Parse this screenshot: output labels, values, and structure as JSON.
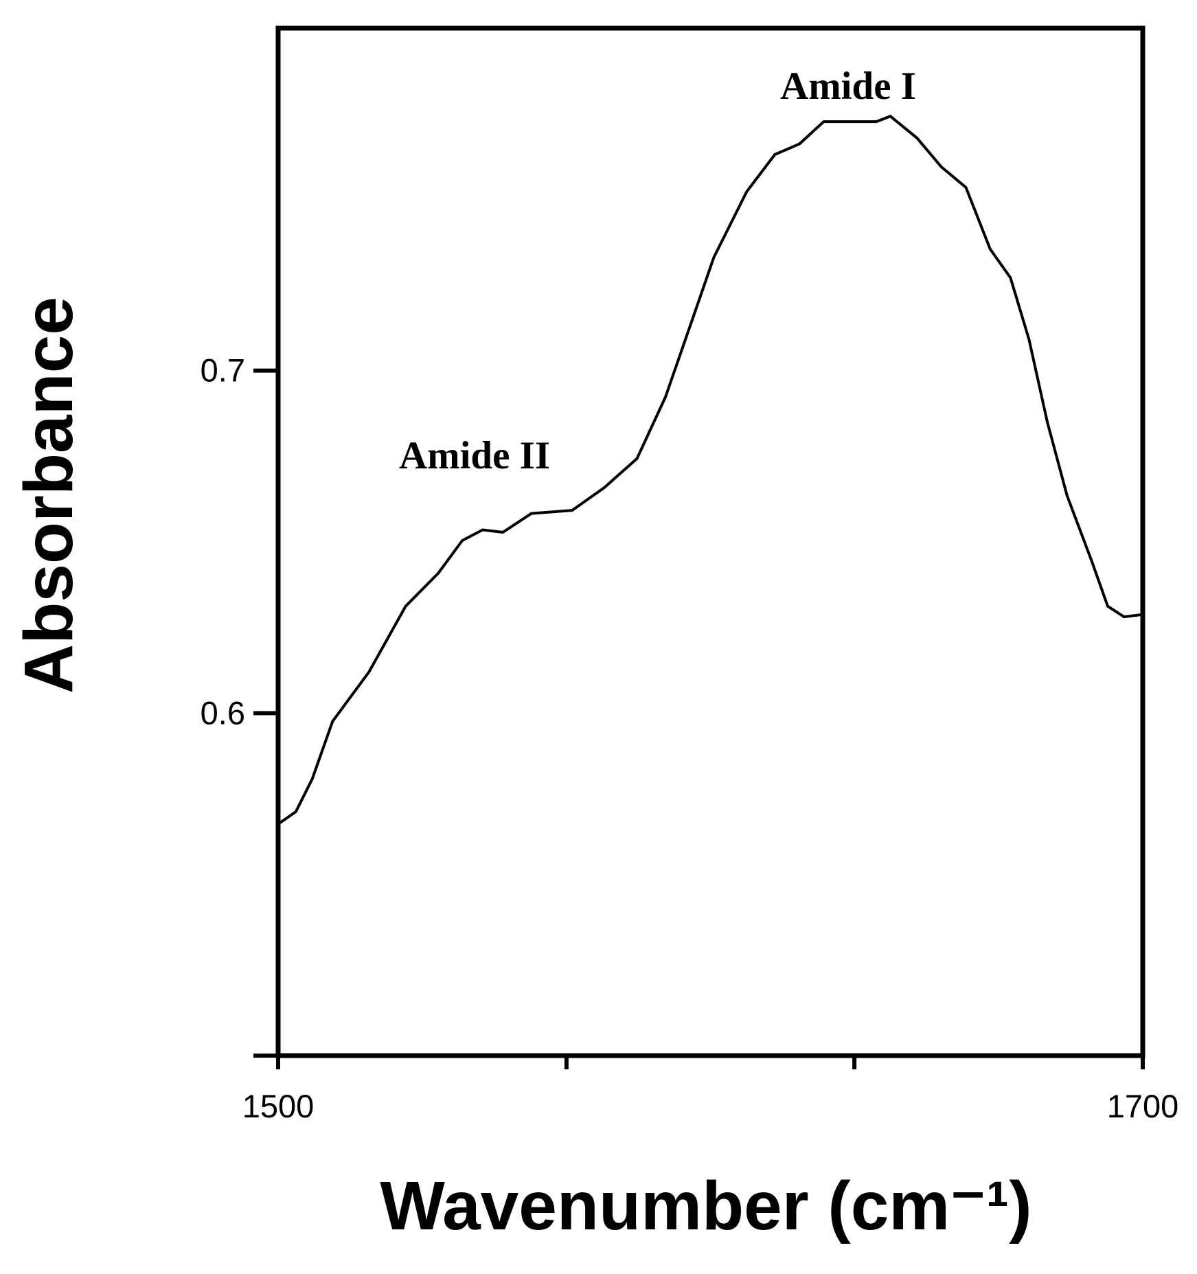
{
  "chart_data": {
    "type": "line",
    "xlabel": "Wavenumber (cm⁻¹)",
    "ylabel": "Absorbance",
    "annotations": [
      "Amide I",
      "Amide II"
    ],
    "xlim": [
      1500,
      1700
    ],
    "xticks": [
      1500,
      {
        "value": 1566.7,
        "label": null
      },
      {
        "value": 1633.3,
        "label": null
      },
      1700
    ],
    "ylim": [
      0.5,
      0.8
    ],
    "yticks": [
      {
        "value": 0.5,
        "label": null
      },
      0.6,
      0.7
    ],
    "grid": false,
    "series": [
      {
        "color": "#000000",
        "x": [
          1500,
          1504.1,
          1507.9,
          1512.6,
          1521.0,
          1529.5,
          1537.0,
          1542.6,
          1547.3,
          1552.0,
          1558.6,
          1568.0,
          1575.5,
          1583.0,
          1589.6,
          1595.2,
          1600.8,
          1608.4,
          1614.9,
          1620.6,
          1626.2,
          1631.8,
          1638.4,
          1641.6,
          1647.8,
          1653.4,
          1659.1,
          1664.7,
          1669.4,
          1673.7,
          1677.9,
          1682.5,
          1688.2,
          1691.9,
          1695.7,
          1700
        ],
        "values": [
          0.5676,
          0.5712,
          0.5808,
          0.5976,
          0.612,
          0.6312,
          0.6408,
          0.6504,
          0.6535,
          0.6528,
          0.6583,
          0.6592,
          0.6659,
          0.6743,
          0.6923,
          0.7127,
          0.7331,
          0.7523,
          0.7631,
          0.7662,
          0.7727,
          0.7727,
          0.7727,
          0.7743,
          0.7679,
          0.7595,
          0.7535,
          0.7355,
          0.7271,
          0.7091,
          0.6851,
          0.6635,
          0.6444,
          0.6312,
          0.6281,
          0.6288
        ]
      }
    ]
  }
}
